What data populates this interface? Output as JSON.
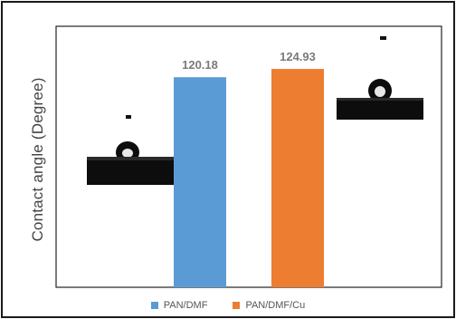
{
  "chart_data": {
    "type": "bar",
    "title": "",
    "xlabel": "",
    "ylabel": "Contact angle (Degree)",
    "categories": [
      "PAN/DMF",
      "PAN/DMF/Cu"
    ],
    "values": [
      120.18,
      124.93
    ],
    "value_labels": [
      "120.18",
      "124.93"
    ],
    "ylim": [
      0,
      140
    ],
    "grid": false,
    "legend": "bottom",
    "colors": [
      "#5b9bd5",
      "#ed7d31"
    ],
    "series": [
      {
        "name": "PAN/DMF",
        "color": "#5b9bd5"
      },
      {
        "name": "PAN/DMF/Cu",
        "color": "#ed7d31"
      }
    ]
  },
  "images": [
    {
      "name": "droplet-image-pan-dmf"
    },
    {
      "name": "droplet-image-pan-dmf-cu"
    }
  ]
}
